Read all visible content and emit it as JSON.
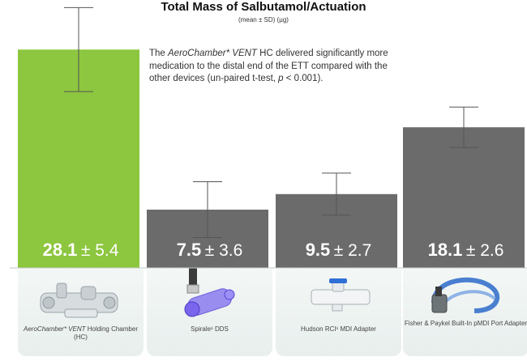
{
  "title": "Total Mass of Salbutamol/Actuation",
  "subtitle": "(mean ± SD) (µg)",
  "annotation": {
    "brand": "AeroChamber* VENT",
    "text1": " HC delivered significantly more medication to the distal end of the ETT compared with the other devices (un-paired t-test, ",
    "p_symbol": "p",
    "text2": " < 0.001)."
  },
  "colors": {
    "highlight": "#8dc63f",
    "bar": "#6b6b6b",
    "errorbar": "#555555"
  },
  "chart_data": {
    "type": "bar",
    "title": "Total Mass of Salbutamol/Actuation",
    "subtitle": "(mean ± SD) (µg)",
    "categories": [
      "AeroChamber* VENT Holding Chamber (HC)",
      "Spirale¹ DDS",
      "Hudson RCI¹ MDI Adapter",
      "Fisher & Paykel Built-In pMDI Port Adapter"
    ],
    "values": [
      28.1,
      7.5,
      9.5,
      18.1
    ],
    "sd": [
      5.4,
      3.6,
      2.7,
      2.6
    ],
    "value_labels": [
      {
        "mean": "28.1",
        "sd": "± 5.4"
      },
      {
        "mean": "7.5",
        "sd": "± 3.6"
      },
      {
        "mean": "9.5",
        "sd": "± 2.7"
      },
      {
        "mean": "18.1",
        "sd": "± 2.6"
      }
    ],
    "ylim": [
      0,
      34
    ],
    "grid": false,
    "highlight_index": 0
  },
  "devices": [
    {
      "brand": "AeroChamber* VENT",
      "name": " Holding Chamber (HC)",
      "icon": "holding-chamber-image"
    },
    {
      "brand": "",
      "name": "Spirale¹ DDS",
      "icon": "spirale-dds-image"
    },
    {
      "brand": "",
      "name": "Hudson RCI¹ MDI Adapter",
      "icon": "hudson-adapter-image"
    },
    {
      "brand": "",
      "name": "Fisher & Paykel Built-In pMDI Port Adapter",
      "icon": "fisher-paykel-adapter-image"
    }
  ]
}
